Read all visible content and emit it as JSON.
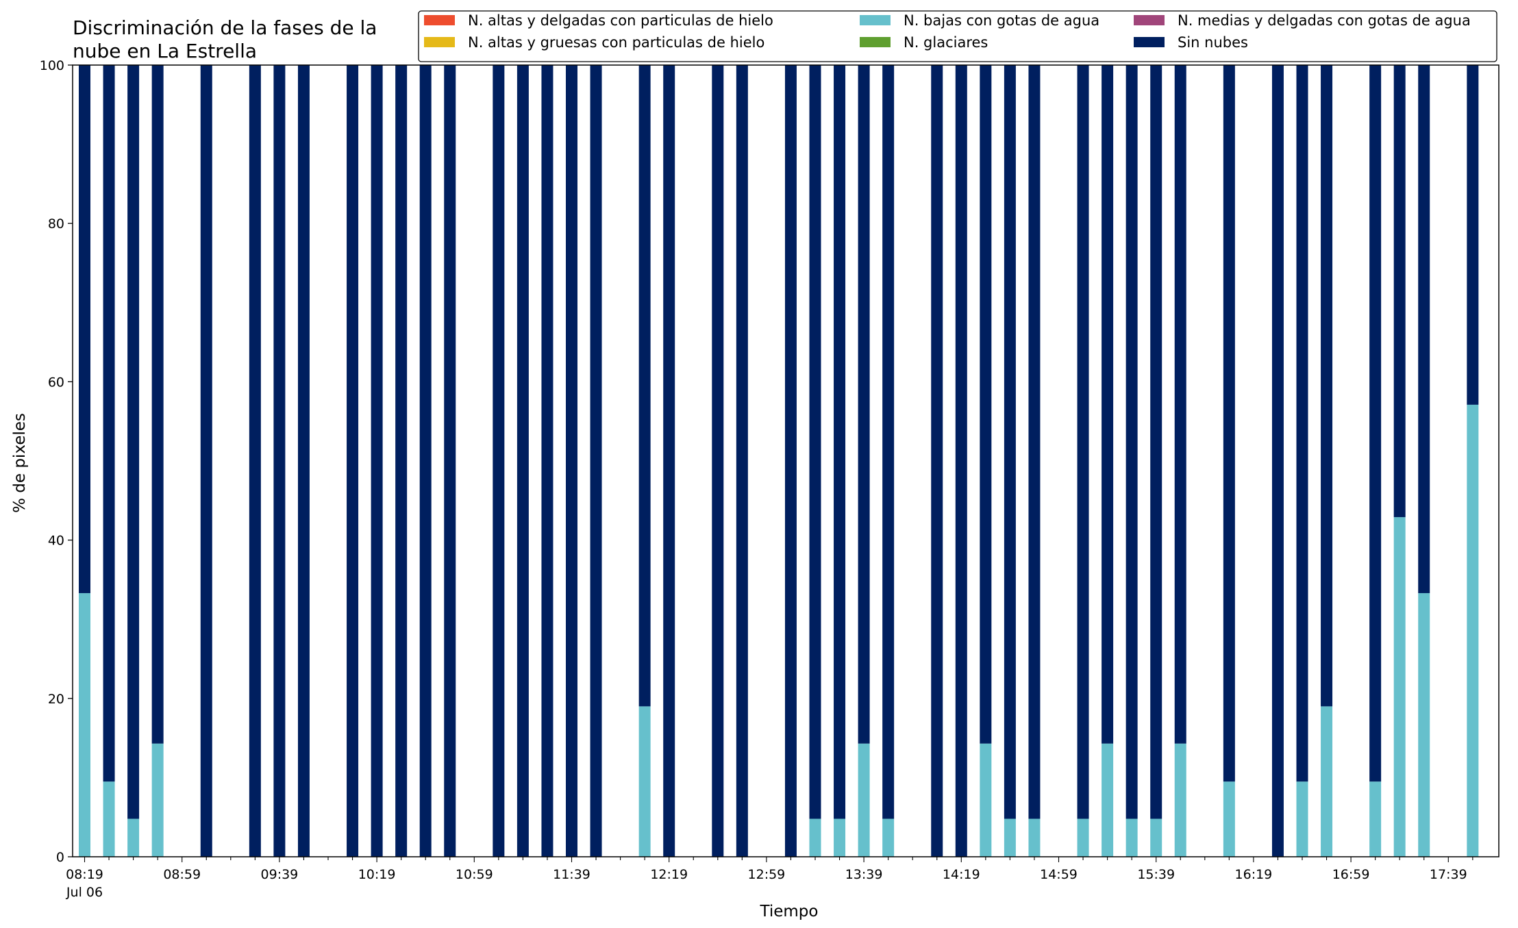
{
  "chart_data": {
    "type": "bar",
    "stacked": true,
    "title_lines": [
      "Discriminación de la fases de la",
      "nube en La Estrella"
    ],
    "xlabel": "Tiempo",
    "ylabel": "% de pixeles",
    "ylim": [
      0,
      100
    ],
    "yticks": [
      0,
      20,
      40,
      60,
      80,
      100
    ],
    "x_start": "08:19",
    "x_step_minutes": 10,
    "x_count": 58,
    "x_tick_labels": [
      {
        "index": 0,
        "label": "08:19",
        "sub": "Jul 06"
      },
      {
        "index": 4,
        "label": "08:59"
      },
      {
        "index": 8,
        "label": "09:39"
      },
      {
        "index": 12,
        "label": "10:19"
      },
      {
        "index": 16,
        "label": "10:59"
      },
      {
        "index": 20,
        "label": "11:39"
      },
      {
        "index": 24,
        "label": "12:19"
      },
      {
        "index": 28,
        "label": "12:59"
      },
      {
        "index": 32,
        "label": "13:39"
      },
      {
        "index": 36,
        "label": "14:19"
      },
      {
        "index": 40,
        "label": "14:59"
      },
      {
        "index": 44,
        "label": "15:39"
      },
      {
        "index": 48,
        "label": "16:19"
      },
      {
        "index": 52,
        "label": "16:59"
      },
      {
        "index": 56,
        "label": "17:39"
      }
    ],
    "legend_placement": "top-right",
    "series": [
      {
        "name": "N. altas y delgadas con particulas de hielo",
        "color": "#ee4d2e"
      },
      {
        "name": "N. altas y gruesas con particulas de hielo",
        "color": "#e5b919"
      },
      {
        "name": "N. bajas con gotas de agua",
        "color": "#66c0cc"
      },
      {
        "name": "N. glaciares",
        "color": "#5f9f2f"
      },
      {
        "name": "N. medias y delgadas con gotas de agua",
        "color": "#a0457a"
      },
      {
        "name": "Sin nubes",
        "color": "#001f5f"
      }
    ],
    "bars": [
      {
        "index": 0,
        "low_water": 33.3
      },
      {
        "index": 1,
        "low_water": 9.5
      },
      {
        "index": 2,
        "low_water": 4.8
      },
      {
        "index": 3,
        "low_water": 14.3
      },
      {
        "index": 5,
        "low_water": 0
      },
      {
        "index": 7,
        "low_water": 0
      },
      {
        "index": 8,
        "low_water": 0
      },
      {
        "index": 9,
        "low_water": 0
      },
      {
        "index": 11,
        "low_water": 0
      },
      {
        "index": 12,
        "low_water": 0
      },
      {
        "index": 13,
        "low_water": 0
      },
      {
        "index": 14,
        "low_water": 0
      },
      {
        "index": 15,
        "low_water": 0
      },
      {
        "index": 17,
        "low_water": 0
      },
      {
        "index": 18,
        "low_water": 0
      },
      {
        "index": 19,
        "low_water": 0
      },
      {
        "index": 20,
        "low_water": 0
      },
      {
        "index": 21,
        "low_water": 0
      },
      {
        "index": 23,
        "low_water": 19.0
      },
      {
        "index": 24,
        "low_water": 0
      },
      {
        "index": 26,
        "low_water": 0
      },
      {
        "index": 27,
        "low_water": 0
      },
      {
        "index": 29,
        "low_water": 0
      },
      {
        "index": 30,
        "low_water": 4.8
      },
      {
        "index": 31,
        "low_water": 4.8
      },
      {
        "index": 32,
        "low_water": 14.3
      },
      {
        "index": 33,
        "low_water": 4.8
      },
      {
        "index": 35,
        "low_water": 0
      },
      {
        "index": 36,
        "low_water": 0
      },
      {
        "index": 37,
        "low_water": 14.3
      },
      {
        "index": 38,
        "low_water": 4.8
      },
      {
        "index": 39,
        "low_water": 4.8
      },
      {
        "index": 41,
        "low_water": 4.8
      },
      {
        "index": 42,
        "low_water": 14.3
      },
      {
        "index": 43,
        "low_water": 4.8
      },
      {
        "index": 44,
        "low_water": 4.8
      },
      {
        "index": 45,
        "low_water": 14.3
      },
      {
        "index": 47,
        "low_water": 9.5
      },
      {
        "index": 49,
        "low_water": 0
      },
      {
        "index": 50,
        "low_water": 9.5
      },
      {
        "index": 51,
        "low_water": 19.0
      },
      {
        "index": 53,
        "low_water": 9.5
      },
      {
        "index": 54,
        "low_water": 42.9
      },
      {
        "index": 55,
        "low_water": 33.3
      },
      {
        "index": 57,
        "low_water": 57.1
      }
    ]
  }
}
